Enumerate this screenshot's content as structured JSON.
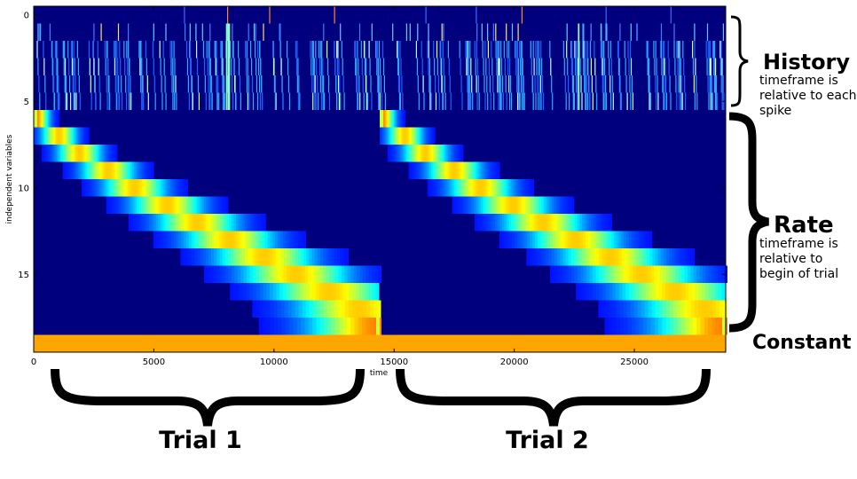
{
  "chart_data": {
    "type": "heatmap",
    "xlabel": "time",
    "ylabel": "independent variables",
    "xlim": [
      0,
      28800
    ],
    "ylim": [
      19.5,
      -0.5
    ],
    "x_ticks": [
      0,
      5000,
      10000,
      15000,
      20000,
      25000
    ],
    "y_ticks": [
      0,
      5,
      10,
      15
    ],
    "grid": false,
    "colormap": "jet",
    "colors": {
      "background": "#00007f",
      "constant": "#ffa500",
      "peak": "#5fffa0"
    },
    "rows": {
      "history": [
        0,
        1,
        2,
        3,
        4,
        5
      ],
      "rate": [
        6,
        7,
        8,
        9,
        10,
        11,
        12,
        13,
        14,
        15,
        16,
        17,
        18
      ],
      "constant": [
        19
      ]
    },
    "trials": [
      {
        "label": "Trial 1",
        "start": 0,
        "end": 14400
      },
      {
        "label": "Trial 2",
        "start": 14400,
        "end": 28800
      }
    ],
    "history_row0_events": [
      6250,
      8050,
      9800,
      12500,
      16300,
      18400,
      20300,
      23800,
      26500
    ],
    "history_row0_orange_events": [
      8050,
      9800,
      12500,
      20300
    ],
    "rate_basis_relative_centers": [
      100,
      1050,
      1900,
      3100,
      4200,
      5550,
      6800,
      8150,
      9600,
      10900,
      12300,
      13550,
      14300
    ],
    "constant_value": 1
  },
  "annotations": {
    "history": {
      "title": "History",
      "subtitle": [
        "timeframe is",
        "relative to each",
        "spike"
      ]
    },
    "rate": {
      "title": "Rate",
      "subtitle": [
        "timeframe is",
        "relative to",
        "begin of trial"
      ]
    },
    "constant": {
      "title": "Constant"
    }
  },
  "trial_labels": [
    "Trial 1",
    "Trial 2"
  ]
}
